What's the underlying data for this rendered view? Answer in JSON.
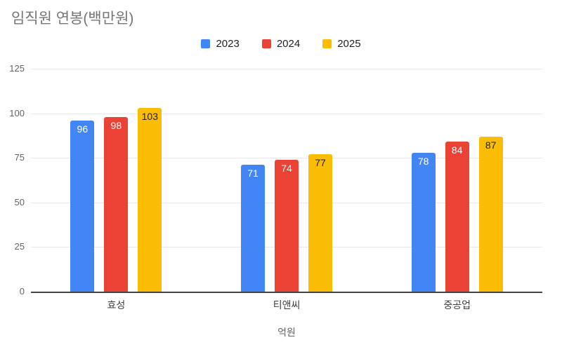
{
  "title": "임직원 연봉(백만원)",
  "chart_data": {
    "type": "bar",
    "categories": [
      "효성",
      "티앤씨",
      "중공업"
    ],
    "series": [
      {
        "name": "2023",
        "color": "#4285F4",
        "label_color": "#ffffff",
        "values": [
          96,
          71,
          78
        ]
      },
      {
        "name": "2024",
        "color": "#EA4335",
        "label_color": "#ffffff",
        "values": [
          98,
          74,
          84
        ]
      },
      {
        "name": "2025",
        "color": "#FBBC04",
        "label_color": "#202124",
        "values": [
          103,
          77,
          87
        ]
      }
    ],
    "xlabel": "억원",
    "ylabel": "",
    "ylim": [
      0,
      125
    ],
    "yticks": [
      0,
      25,
      50,
      75,
      100,
      125
    ],
    "grid": true,
    "legend_position": "top",
    "show_value_labels": true,
    "axis_line_color": "#424242",
    "gridline_color": "#e8e8e8",
    "title_color": "#757575"
  }
}
